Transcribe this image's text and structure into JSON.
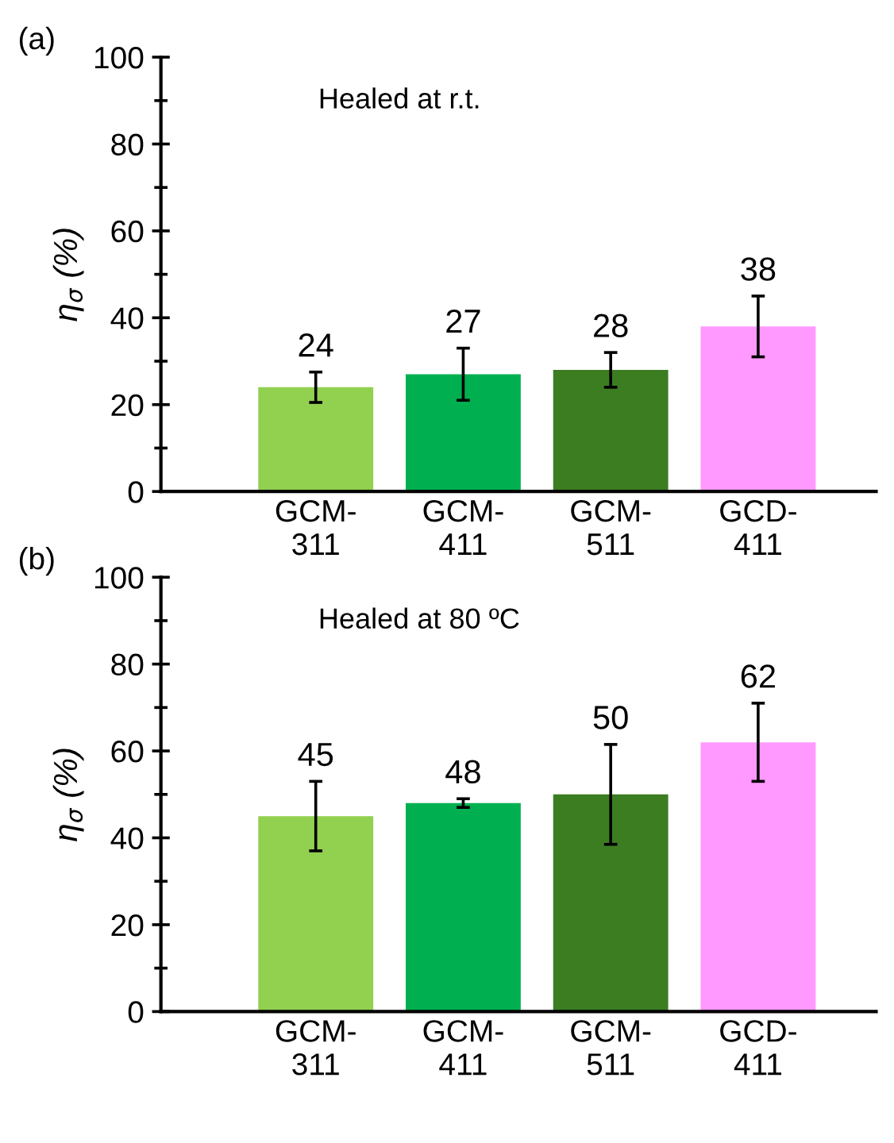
{
  "chart_data": [
    {
      "type": "bar",
      "title": "(a)",
      "ylabel": "η$_{σ}$ (%)",
      "annotations": [
        "Healed at r.t."
      ],
      "categories": [
        "GCM-\n311",
        "GCM-\n411",
        "GCM-\n511",
        "GCD-\n411"
      ],
      "values": [
        24,
        27,
        28,
        38
      ],
      "colors": [
        "#92d050",
        "#00b050",
        "#3c7d22",
        "#ff99ff"
      ],
      "errors": [
        3.5,
        6,
        4,
        7
      ],
      "data_labels": true,
      "ylim": [
        0,
        100
      ],
      "yticks": [
        0,
        20,
        40,
        60,
        80,
        100
      ],
      "grid": false,
      "legend": false
    },
    {
      "type": "bar",
      "title": "(b)",
      "ylabel": "η$_{σ}$ (%)",
      "annotations": [
        "Healed at 80 ºC"
      ],
      "categories": [
        "GCM-\n311",
        "GCM-\n411",
        "GCM-\n511",
        "GCD-\n411"
      ],
      "values": [
        45,
        48,
        50,
        62
      ],
      "colors": [
        "#92d050",
        "#00b050",
        "#3c7d22",
        "#ff99ff"
      ],
      "errors": [
        8,
        1,
        11.5,
        9
      ],
      "data_labels": true,
      "ylim": [
        0,
        100
      ],
      "yticks": [
        0,
        20,
        40,
        60,
        80,
        100
      ],
      "grid": false,
      "legend": false
    }
  ]
}
